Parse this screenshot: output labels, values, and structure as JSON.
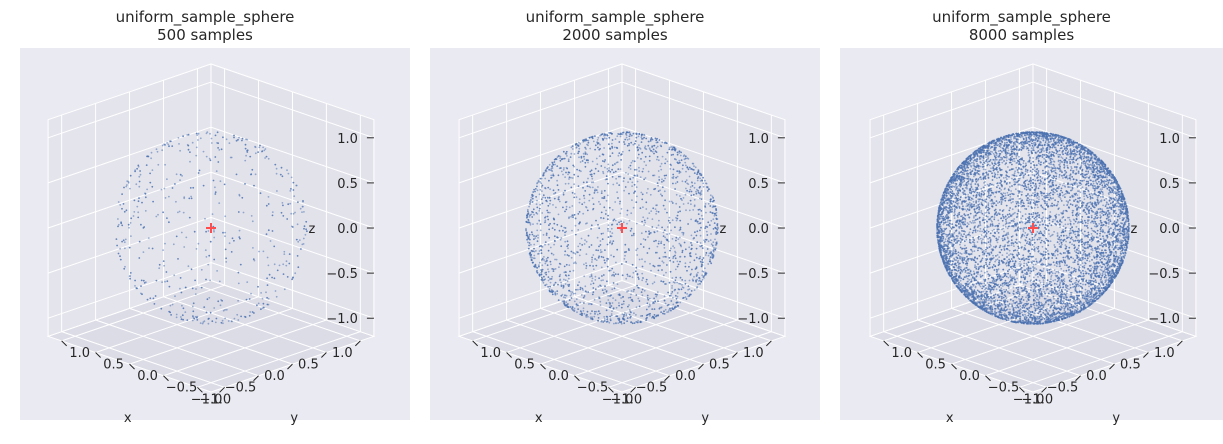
{
  "chart_data": [
    {
      "type": "scatter",
      "title": "uniform_sample_sphere",
      "subtitle": "500 samples",
      "n_samples": 500,
      "xlabel": "x",
      "ylabel": "y",
      "zlabel": "z",
      "xlim": [
        -1.2,
        1.2
      ],
      "ylim": [
        -1.2,
        1.2
      ],
      "zlim": [
        -1.2,
        1.2
      ],
      "xticks": [
        "−1.0",
        "−0.5",
        "0.0",
        "0.5",
        "1.0"
      ],
      "yticks": [
        "−1.0",
        "−0.5",
        "0.0",
        "0.5",
        "1.0"
      ],
      "zticks": [
        "1.0",
        "0.5",
        "0.0",
        "−0.5",
        "−1.0"
      ],
      "center_marker": [
        0,
        0,
        0
      ],
      "colors": {
        "points": "#4c72b0",
        "center": "#ff4d4d"
      }
    },
    {
      "type": "scatter",
      "title": "uniform_sample_sphere",
      "subtitle": "2000 samples",
      "n_samples": 2000,
      "xlabel": "x",
      "ylabel": "y",
      "zlabel": "z",
      "xlim": [
        -1.2,
        1.2
      ],
      "ylim": [
        -1.2,
        1.2
      ],
      "zlim": [
        -1.2,
        1.2
      ],
      "xticks": [
        "−1.0",
        "−0.5",
        "0.0",
        "0.5",
        "1.0"
      ],
      "yticks": [
        "−1.0",
        "−0.5",
        "0.0",
        "0.5",
        "1.0"
      ],
      "zticks": [
        "1.0",
        "0.5",
        "0.0",
        "−0.5",
        "−1.0"
      ],
      "center_marker": [
        0,
        0,
        0
      ],
      "colors": {
        "points": "#4c72b0",
        "center": "#ff4d4d"
      }
    },
    {
      "type": "scatter",
      "title": "uniform_sample_sphere",
      "subtitle": "8000 samples",
      "n_samples": 8000,
      "xlabel": "x",
      "ylabel": "y",
      "zlabel": "z",
      "xlim": [
        -1.2,
        1.2
      ],
      "ylim": [
        -1.2,
        1.2
      ],
      "zlim": [
        -1.2,
        1.2
      ],
      "xticks": [
        "−1.0",
        "−0.5",
        "0.0",
        "0.5",
        "1.0"
      ],
      "yticks": [
        "−1.0",
        "−0.5",
        "0.0",
        "0.5",
        "1.0"
      ],
      "zticks": [
        "1.0",
        "0.5",
        "0.0",
        "−0.5",
        "−1.0"
      ],
      "center_marker": [
        0,
        0,
        0
      ],
      "colors": {
        "points": "#4c72b0",
        "center": "#ff4d4d"
      }
    }
  ]
}
